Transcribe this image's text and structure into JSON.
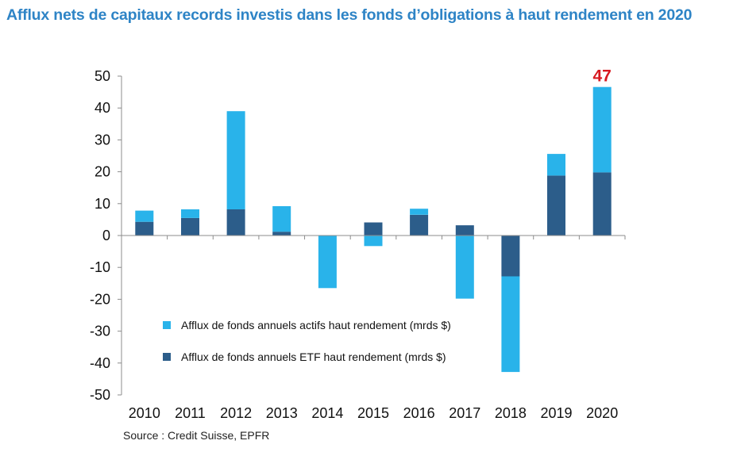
{
  "title": "Afflux nets de capitaux records investis dans les fonds d’obligations à haut rendement en 2020",
  "source": "Source : Credit Suisse, EPFR",
  "colors": {
    "title": "#2e84c6",
    "active": "#29b3ea",
    "etf": "#2c5d8a",
    "callout": "#d71920",
    "axis": "#8c8c8c"
  },
  "chart_data": {
    "type": "bar",
    "stacked": true,
    "categories": [
      "2010",
      "2011",
      "2012",
      "2013",
      "2014",
      "2015",
      "2016",
      "2017",
      "2018",
      "2019",
      "2020"
    ],
    "series": [
      {
        "name": "Afflux de fonds annuels ETF haut rendement (mrds $)",
        "color": "#2c5d8a",
        "values": [
          4.3,
          5.5,
          8.2,
          1.2,
          0,
          4.1,
          6.5,
          3.2,
          -12.8,
          18.8,
          19.8
        ]
      },
      {
        "name": "Afflux de fonds annuels actifs haut rendement (mrds $)",
        "color": "#29b3ea",
        "values": [
          3.5,
          2.7,
          30.8,
          8.0,
          -16.5,
          -3.3,
          1.9,
          -19.8,
          -30.0,
          6.8,
          26.8
        ]
      }
    ],
    "ylim": [
      -50,
      50
    ],
    "yticks": [
      50,
      40,
      30,
      20,
      10,
      0,
      -10,
      -20,
      -30,
      -40,
      -50
    ],
    "annotation": {
      "category": "2020",
      "text": "47"
    },
    "legend_position": "lower-left inside plot",
    "grid": false
  }
}
